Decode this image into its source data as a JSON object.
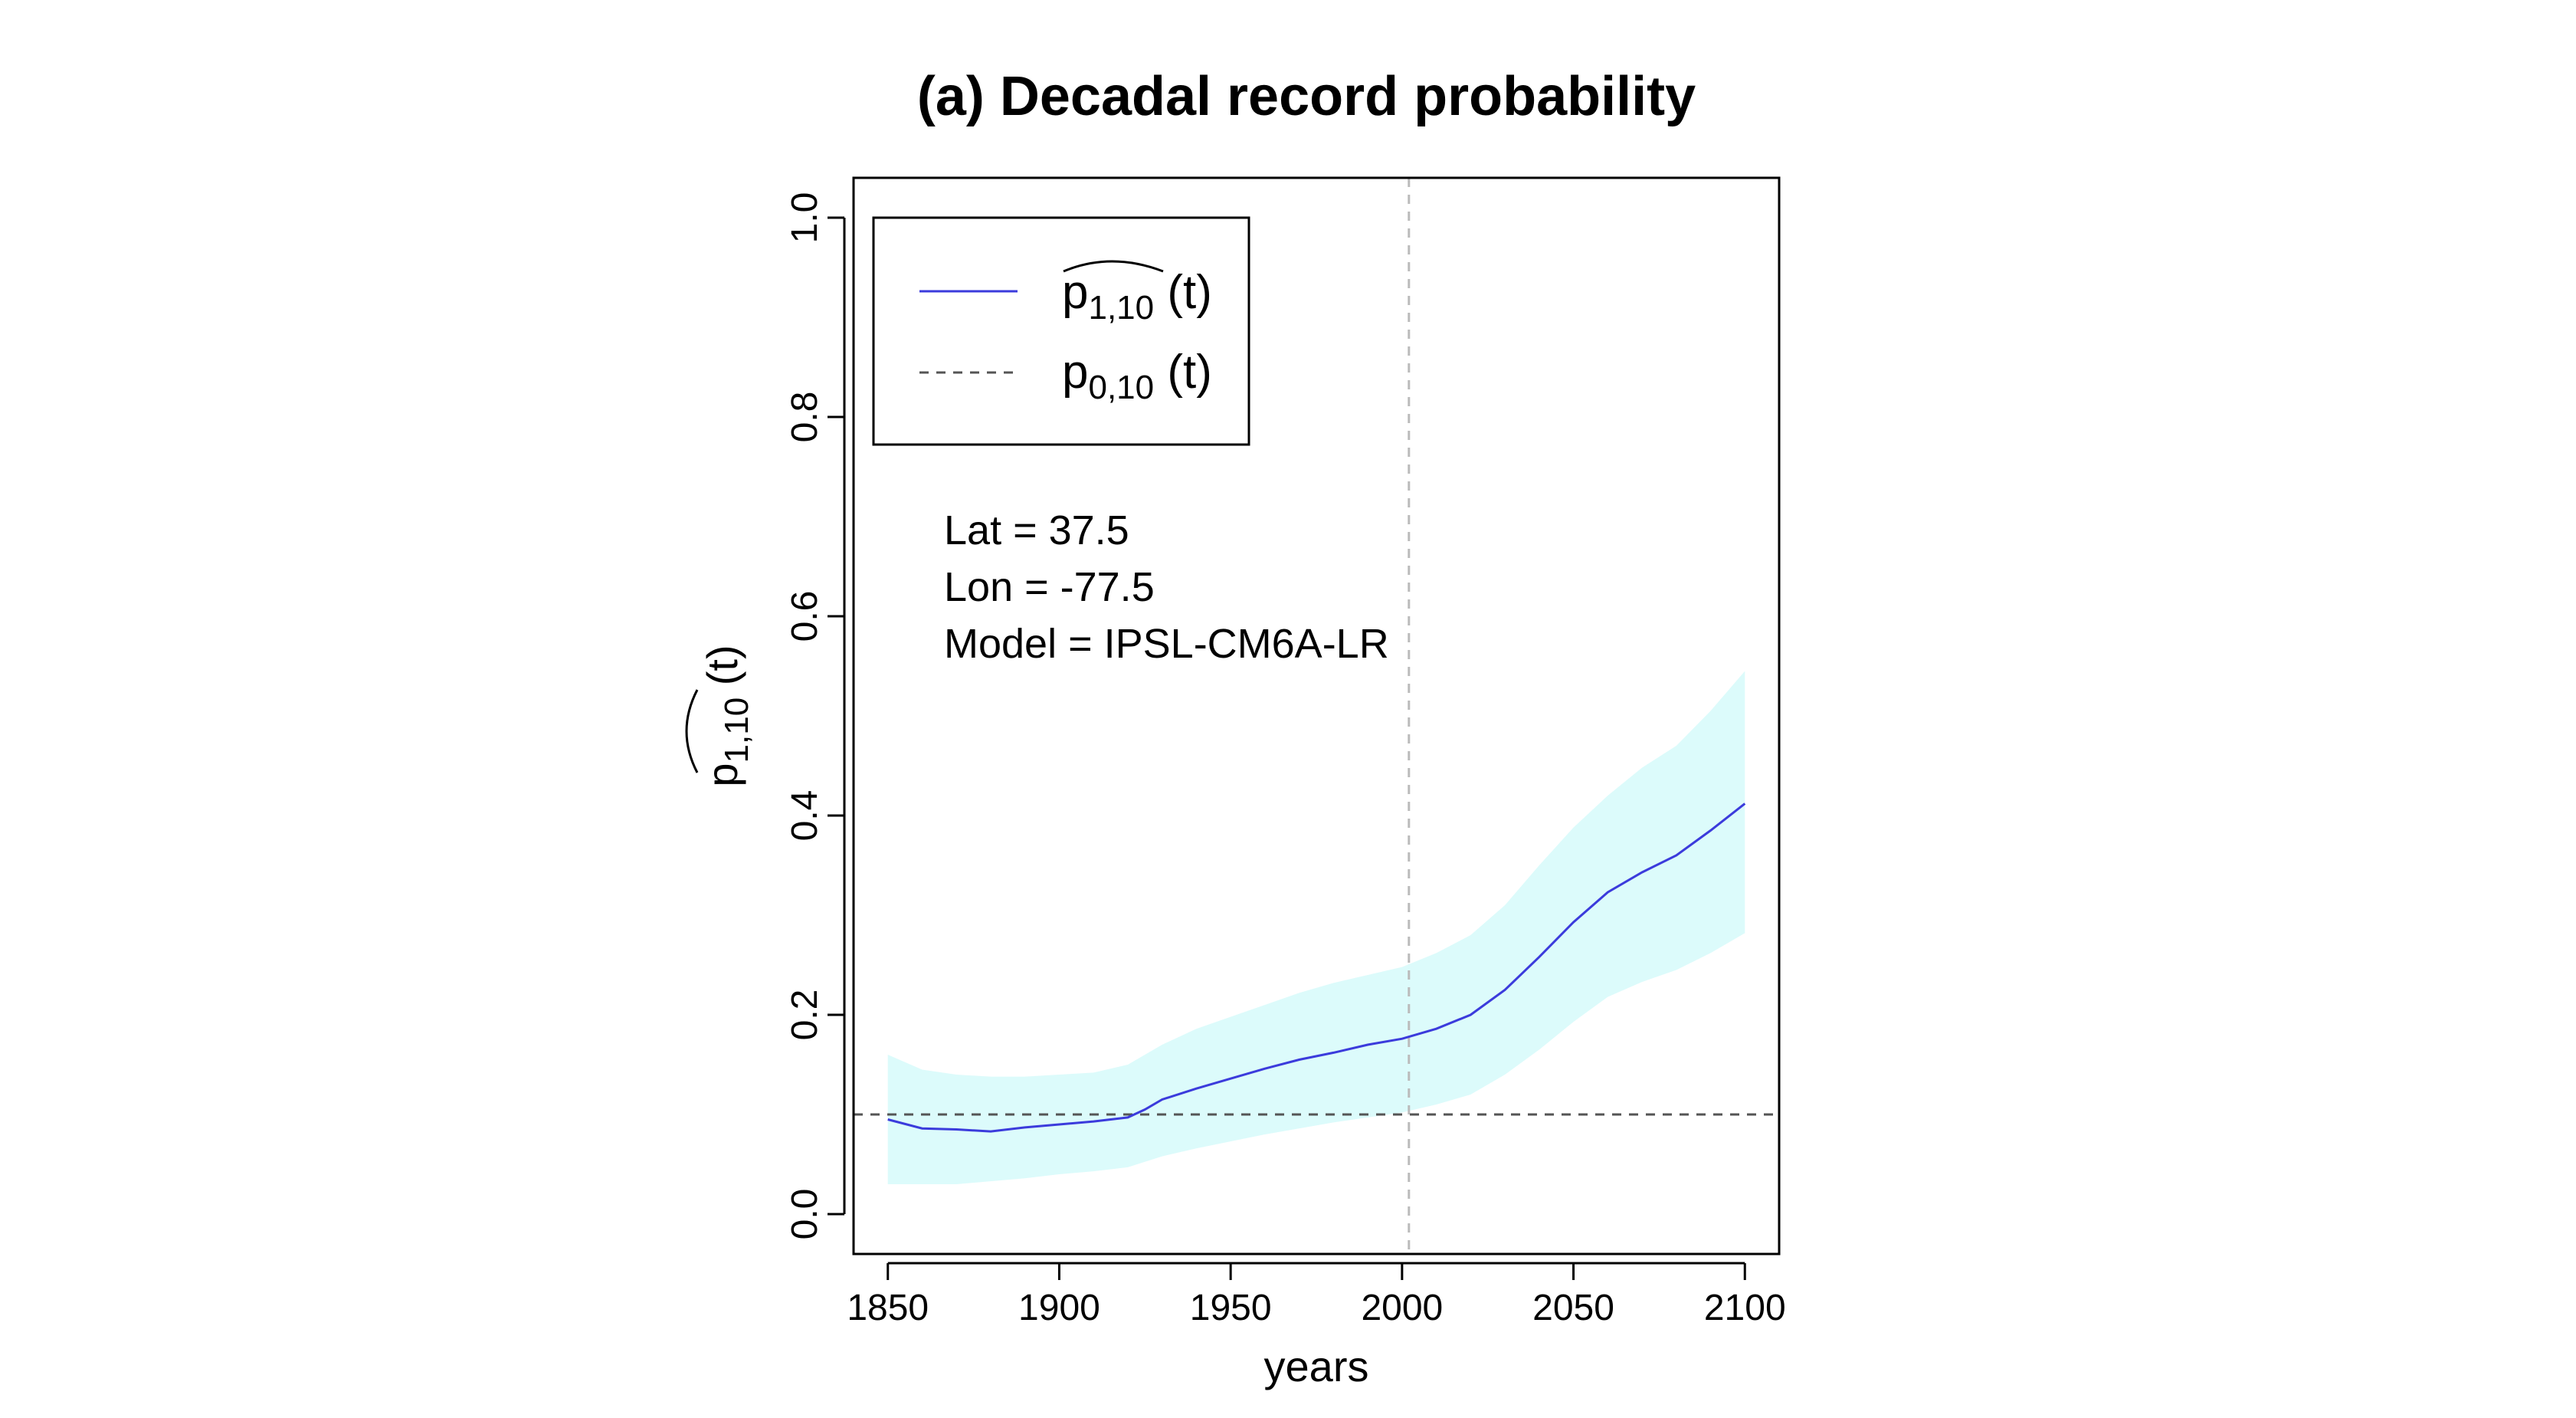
{
  "chart_data": {
    "type": "line",
    "title": "(a) Decadal record probability",
    "xlabel": "years",
    "ylabel": {
      "base": "p",
      "subscript": "1,10",
      "suffix": " (t)"
    },
    "xlim": [
      1840,
      2110
    ],
    "ylim": [
      -0.04,
      1.04
    ],
    "x_ticks": [
      1850,
      1900,
      1950,
      2000,
      2050,
      2100
    ],
    "y_ticks": [
      0.0,
      0.2,
      0.4,
      0.6,
      0.8,
      1.0
    ],
    "y_tick_labels": [
      "0.0",
      "0.2",
      "0.4",
      "0.6",
      "0.8",
      "1.0"
    ],
    "grid": false,
    "vertical_reference_x": 2002,
    "horizontal_reference_y": 0.1,
    "legend_position": "top-left",
    "legend": [
      {
        "base": "p",
        "subscript": "1,10",
        "suffix": " (t)",
        "hat": true,
        "color": "#3b3bdc",
        "style": "solid"
      },
      {
        "base": "p",
        "subscript": "0,10",
        "suffix": " (t)",
        "hat": false,
        "color": "#555555",
        "style": "dashed"
      }
    ],
    "annotations": [
      "Lat = 37.5",
      "Lon = -77.5",
      "Model = IPSL-CM6A-LR"
    ],
    "series": [
      {
        "color": "#3b3bdc",
        "x": [
          1850,
          1860,
          1870,
          1880,
          1890,
          1900,
          1910,
          1920,
          1925,
          1930,
          1940,
          1950,
          1960,
          1970,
          1980,
          1990,
          2000,
          2010,
          2020,
          2030,
          2040,
          2050,
          2060,
          2070,
          2080,
          2090,
          2100
        ],
        "y": [
          0.095,
          0.086,
          0.085,
          0.083,
          0.087,
          0.09,
          0.093,
          0.097,
          0.105,
          0.115,
          0.126,
          0.136,
          0.146,
          0.155,
          0.162,
          0.17,
          0.176,
          0.186,
          0.2,
          0.225,
          0.258,
          0.293,
          0.323,
          0.343,
          0.36,
          0.385,
          0.412
        ]
      }
    ],
    "band": {
      "color": "#dcfbfb",
      "x": [
        1850,
        1860,
        1870,
        1880,
        1890,
        1900,
        1910,
        1920,
        1930,
        1940,
        1950,
        1960,
        1970,
        1980,
        1990,
        2000,
        2010,
        2020,
        2030,
        2040,
        2050,
        2060,
        2070,
        2080,
        2090,
        2100
      ],
      "upper": [
        0.16,
        0.145,
        0.14,
        0.138,
        0.138,
        0.14,
        0.142,
        0.15,
        0.17,
        0.186,
        0.198,
        0.21,
        0.222,
        0.232,
        0.24,
        0.248,
        0.262,
        0.28,
        0.31,
        0.35,
        0.388,
        0.42,
        0.448,
        0.47,
        0.505,
        0.545
      ],
      "lower": [
        0.03,
        0.03,
        0.03,
        0.033,
        0.036,
        0.04,
        0.043,
        0.047,
        0.058,
        0.066,
        0.073,
        0.08,
        0.086,
        0.092,
        0.097,
        0.102,
        0.11,
        0.12,
        0.14,
        0.165,
        0.193,
        0.218,
        0.233,
        0.245,
        0.262,
        0.282
      ]
    }
  }
}
